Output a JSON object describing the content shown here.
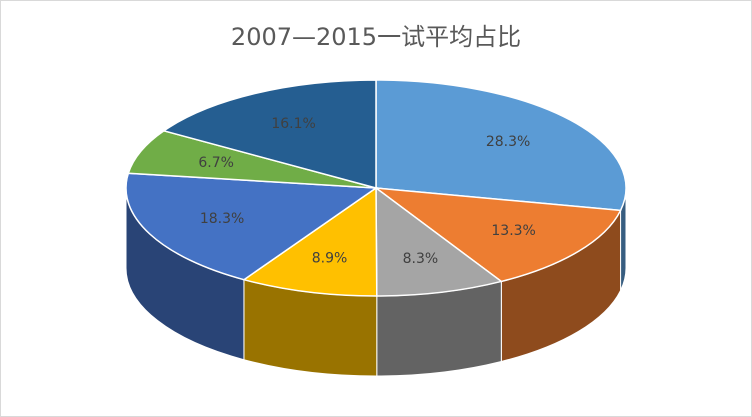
{
  "chart_data": {
    "type": "pie3d",
    "title": "2007—2015一试平均占比",
    "values": [
      28.3,
      13.3,
      8.3,
      8.9,
      18.3,
      6.7,
      16.1
    ],
    "value_labels": [
      "28.3%",
      "13.3%",
      "8.3%",
      "8.9%",
      "18.3%",
      "6.7%",
      "16.1%"
    ],
    "colors": [
      "#5b9bd5",
      "#ed7d31",
      "#a5a5a5",
      "#ffc000",
      "#4472c4",
      "#70ad47",
      "#255e91"
    ]
  }
}
